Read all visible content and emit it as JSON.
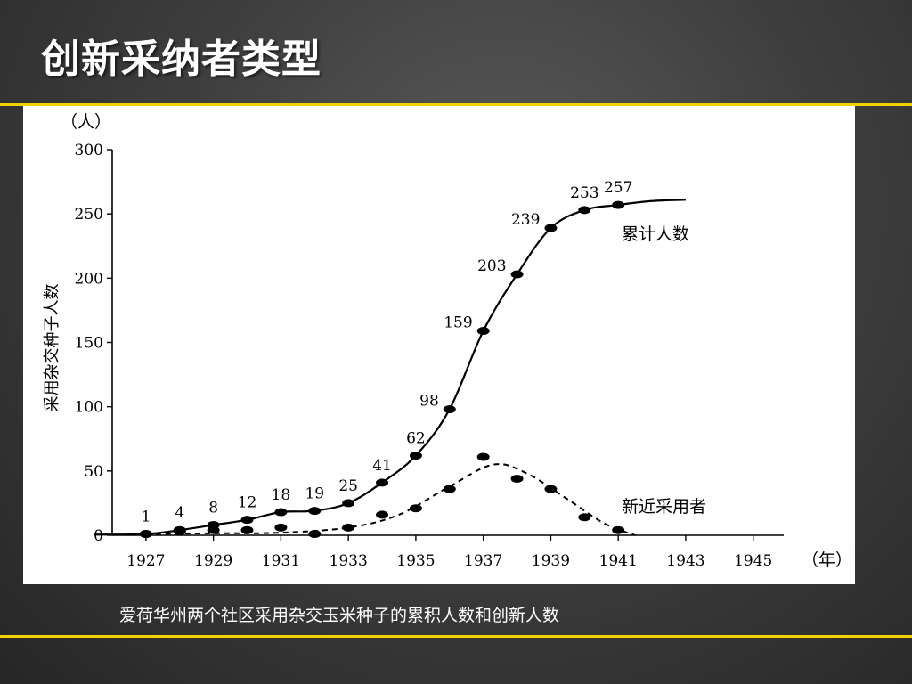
{
  "slide": {
    "title": "创新采纳者类型",
    "caption": "爱荷华州两个社区采用杂交玉米种子的累积人数和创新人数",
    "colors": {
      "accent_rule": "#f2d200",
      "title_text": "#ffffff",
      "chart_background": "#ffffff"
    }
  },
  "chart_data": {
    "type": "line",
    "title": "",
    "ylabel": "采用杂交种子人数",
    "yunit": "（人）",
    "xunit": "（年）",
    "xlim": [
      1926,
      1945.8
    ],
    "ylim": [
      0,
      300
    ],
    "xticks": [
      1927,
      1929,
      1931,
      1933,
      1935,
      1937,
      1939,
      1941,
      1943,
      1945
    ],
    "yticks": [
      0,
      50,
      100,
      150,
      200,
      250,
      300
    ],
    "grid": false,
    "series": [
      {
        "name": "累计人数",
        "style": "solid",
        "x": [
          1927,
          1928,
          1929,
          1930,
          1931,
          1932,
          1933,
          1934,
          1935,
          1936,
          1937,
          1938,
          1939,
          1940,
          1941
        ],
        "values": [
          1,
          4,
          8,
          12,
          18,
          19,
          25,
          41,
          62,
          98,
          159,
          203,
          239,
          253,
          257
        ],
        "labels": [
          "1",
          "4",
          "8",
          "12",
          "18",
          "19",
          "25",
          "41",
          "62",
          "98",
          "159",
          "203",
          "239",
          "253",
          "257"
        ]
      },
      {
        "name": "新近采用者",
        "style": "dashed",
        "x": [
          1927,
          1928,
          1929,
          1930,
          1931,
          1932,
          1933,
          1934,
          1935,
          1936,
          1937,
          1938,
          1939,
          1940,
          1941
        ],
        "values": [
          1,
          3,
          4,
          4,
          6,
          1,
          6,
          16,
          21,
          36,
          61,
          44,
          36,
          14,
          4
        ]
      }
    ]
  }
}
